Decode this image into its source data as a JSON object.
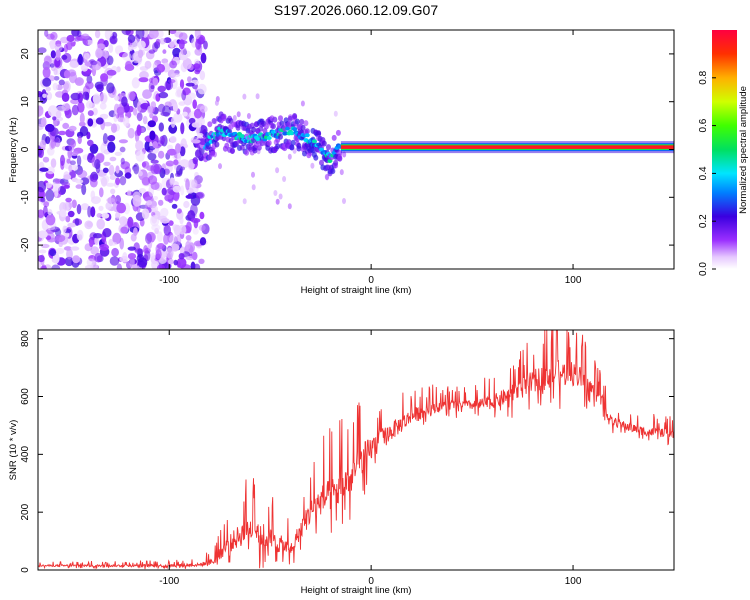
{
  "title": "S197.2026.060.12.09.G07",
  "chart_data": [
    {
      "type": "heatmap",
      "xlabel": "Height of straight line (km)",
      "ylabel": "Frequency (Hz)",
      "xlim": [
        -165,
        150
      ],
      "ylim": [
        -25,
        25
      ],
      "xticks": [
        -100,
        0,
        100
      ],
      "yticks": [
        -20,
        -10,
        0,
        10,
        20
      ],
      "colorbar": {
        "label": "Normalized spectral amplitude",
        "range": [
          0.0,
          1.0
        ],
        "ticks": [
          0.0,
          0.2,
          0.4,
          0.6,
          0.8
        ],
        "tick_labels": [
          "0.0",
          "0.2",
          "0.4",
          "0.6",
          "0.8"
        ]
      },
      "regions": [
        {
          "name": "noise",
          "x_range": [
            -165,
            -82
          ],
          "amplitude": 0.2,
          "note": "random speckle across all frequencies"
        },
        {
          "name": "onset",
          "x_range": [
            -82,
            -15
          ],
          "freq_hz": [
            [
              -82,
              1
            ],
            [
              -75,
              4
            ],
            [
              -60,
              2
            ],
            [
              -50,
              3
            ],
            [
              -40,
              4
            ],
            [
              -30,
              2
            ],
            [
              -20,
              -2
            ],
            [
              -15,
              1
            ]
          ],
          "amplitude": 0.4
        },
        {
          "name": "stable tone",
          "x_range": [
            -15,
            150
          ],
          "freq_hz": 0.5,
          "amplitude": 0.95
        }
      ]
    },
    {
      "type": "line",
      "xlabel": "Height of straight line (km)",
      "ylabel": "SNR (10 * v/v)",
      "xlim": [
        -165,
        150
      ],
      "ylim": [
        0,
        830
      ],
      "xticks": [
        -100,
        0,
        100
      ],
      "yticks": [
        0,
        200,
        400,
        600,
        800
      ],
      "series": [
        {
          "name": "SNR",
          "color": "#ee3333",
          "envelope": {
            "x": [
              -165,
              -130,
              -100,
              -85,
              -78,
              -72,
              -65,
              -58,
              -52,
              -45,
              -40,
              -35,
              -30,
              -25,
              -20,
              -15,
              -10,
              -5,
              0,
              10,
              20,
              30,
              40,
              50,
              60,
              70,
              80,
              90,
              100,
              105,
              110,
              115,
              118,
              125,
              135,
              150
            ],
            "base": [
              15,
              15,
              15,
              18,
              30,
              80,
              120,
              150,
              110,
              90,
              70,
              140,
              200,
              240,
              260,
              280,
              320,
              380,
              420,
              480,
              530,
              560,
              570,
              570,
              580,
              610,
              650,
              680,
              680,
              660,
              620,
              580,
              520,
              500,
              480,
              470
            ],
            "spread": [
              8,
              10,
              12,
              15,
              30,
              70,
              100,
              120,
              110,
              80,
              60,
              80,
              110,
              130,
              140,
              150,
              150,
              130,
              110,
              80,
              70,
              50,
              40,
              40,
              60,
              80,
              100,
              120,
              110,
              90,
              70,
              60,
              40,
              40,
              40,
              35
            ]
          },
          "peak": {
            "x": 92,
            "y": 830
          }
        }
      ]
    }
  ]
}
